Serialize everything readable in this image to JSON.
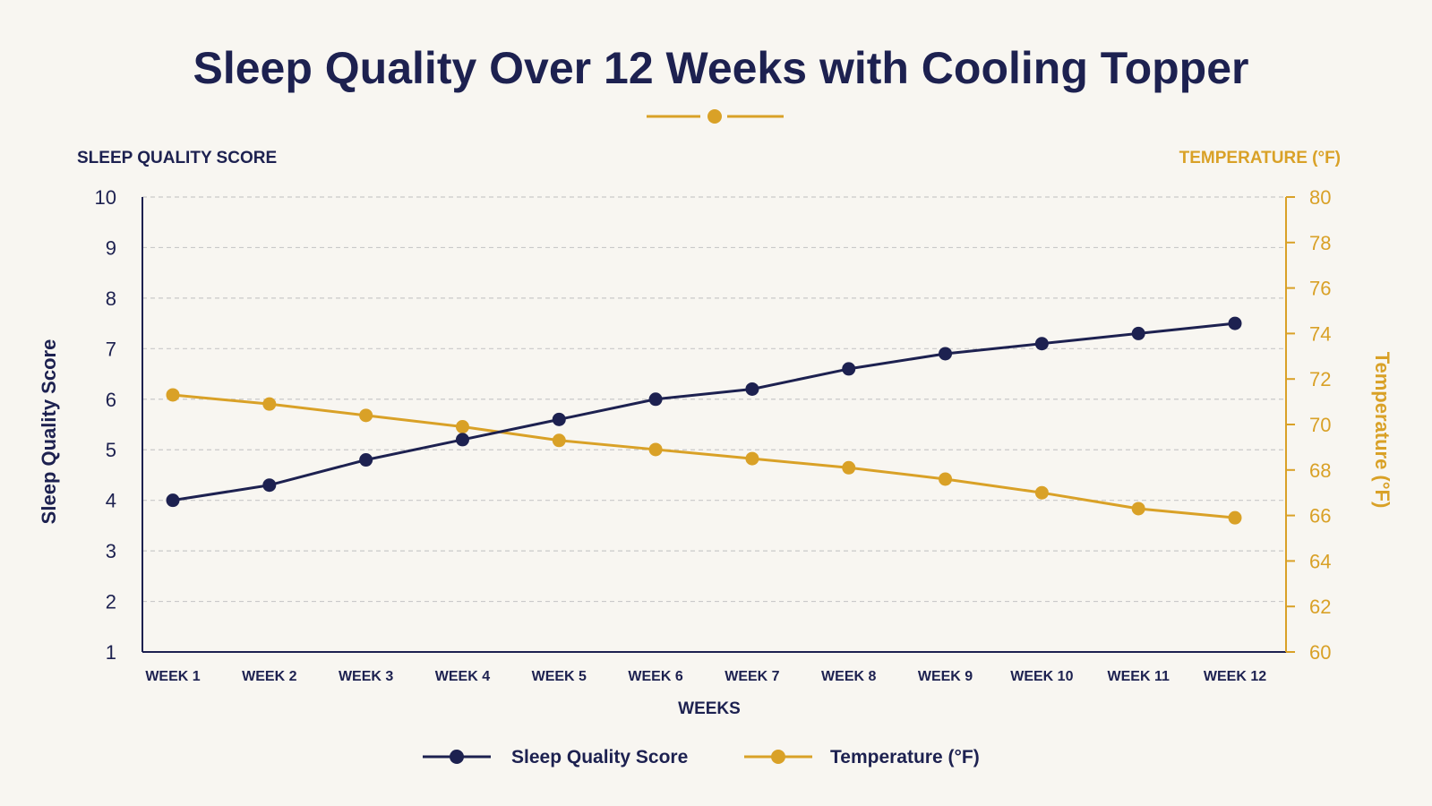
{
  "colors": {
    "background": "#f8f6f1",
    "navy": "#1d2150",
    "gold": "#d9a127",
    "grid": "#c9c9c9"
  },
  "chart_data": {
    "type": "line",
    "title": "Sleep Quality Over 12 Weeks with Cooling Topper",
    "left_axis_header": "SLEEP QUALITY SCORE",
    "right_axis_header": "TEMPERATURE (°F)",
    "ylabel": "Sleep Quality Score",
    "y2label": "Temperature (°F)",
    "xlabel": "WEEKS",
    "categories": [
      "WEEK 1",
      "WEEK 2",
      "WEEK 3",
      "WEEK 4",
      "WEEK 5",
      "WEEK 6",
      "WEEK 7",
      "WEEK 8",
      "WEEK 9",
      "WEEK 10",
      "WEEK 11",
      "WEEK 12"
    ],
    "ylim": [
      1,
      10
    ],
    "yticks": [
      1,
      2,
      3,
      4,
      5,
      6,
      7,
      8,
      9,
      10
    ],
    "y2lim": [
      60,
      80
    ],
    "y2ticks": [
      60,
      62,
      64,
      66,
      68,
      70,
      72,
      74,
      76,
      78,
      80
    ],
    "grid": true,
    "legend_position": "bottom",
    "series": [
      {
        "name": "Sleep Quality Score",
        "axis": "left",
        "color": "#1d2150",
        "values": [
          4.0,
          4.3,
          4.8,
          5.2,
          5.6,
          6.0,
          6.2,
          6.6,
          6.9,
          7.1,
          7.3,
          7.5
        ]
      },
      {
        "name": "Temperature (°F)",
        "axis": "right",
        "color": "#d9a127",
        "values": [
          71.3,
          70.9,
          70.4,
          69.9,
          69.3,
          68.9,
          68.5,
          68.1,
          67.6,
          67.0,
          66.3,
          65.9
        ]
      }
    ]
  }
}
